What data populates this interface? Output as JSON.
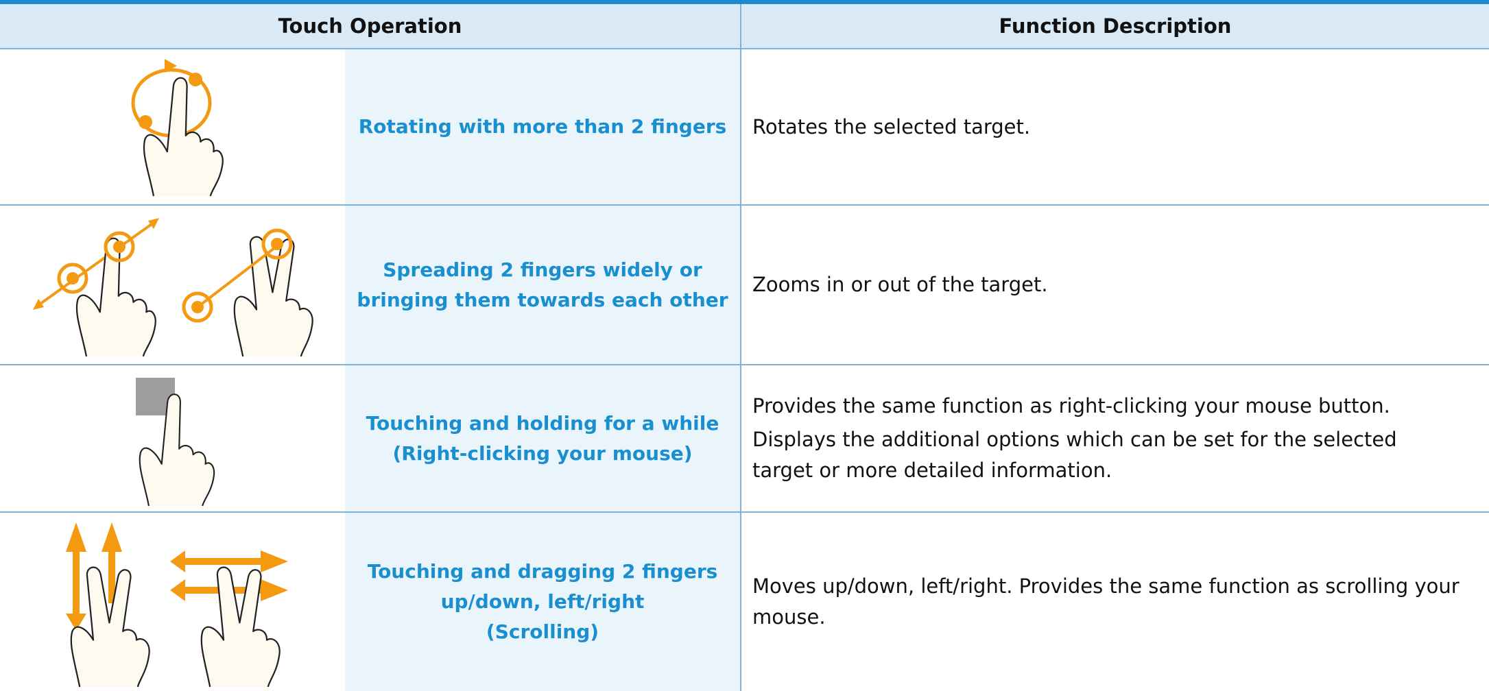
{
  "table": {
    "headers": [
      "Touch Operation",
      "Function Description"
    ],
    "rows": [
      {
        "operation": [
          "Rotating with more than 2 fingers"
        ],
        "description": [
          "Rotates the selected target."
        ]
      },
      {
        "operation": [
          "Spreading 2 fingers widely or",
          "bringing them towards each other"
        ],
        "description": [
          "Zooms in or out of the target."
        ]
      },
      {
        "operation": [
          "Touching and holding for a while",
          "(Right-clicking your mouse)"
        ],
        "description": [
          "Provides the same function as right-clicking your mouse button.",
          "Displays the additional options which can be set for the selected target or more detailed information."
        ]
      },
      {
        "operation": [
          "Touching and dragging 2 fingers",
          "up/down, left/right",
          "(Scrolling)"
        ],
        "description": [
          "Moves up/down, left/right. Provides the same function as scrolling your mouse."
        ]
      }
    ]
  }
}
